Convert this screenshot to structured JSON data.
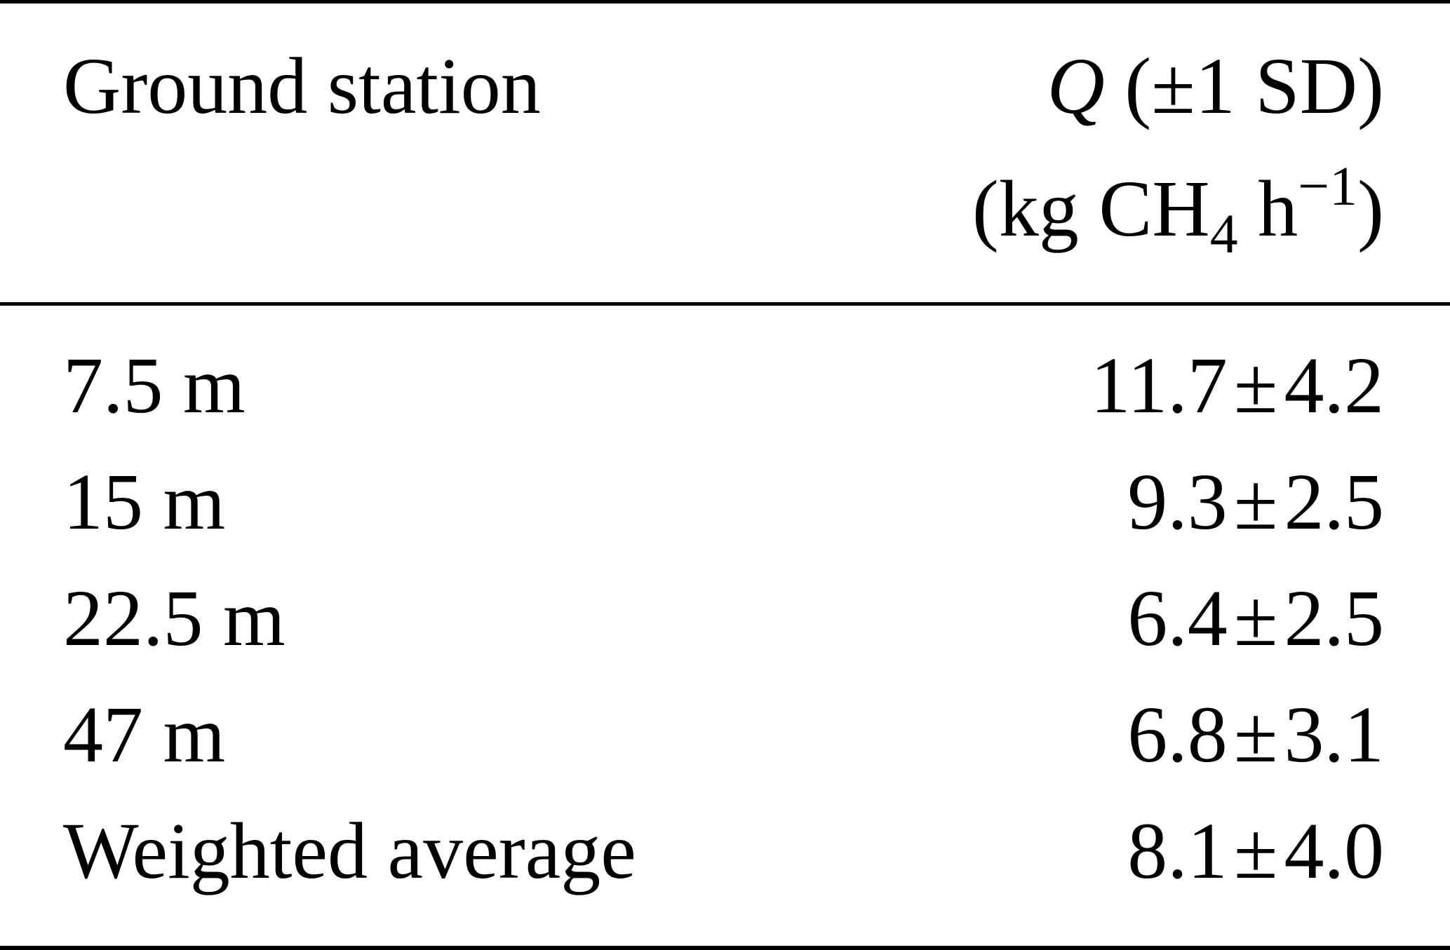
{
  "table": {
    "header": {
      "station_label": "Ground station",
      "q_symbol": "Q",
      "q_sd": "(±1 SD)",
      "unit_open": "(kg CH",
      "unit_sub": "4",
      "unit_h": " h",
      "unit_sup": "−1",
      "unit_close": ")"
    },
    "rows": [
      {
        "station": "7.5 m",
        "mean": "11.7",
        "pm": "±",
        "sd": "4.2"
      },
      {
        "station": "15 m",
        "mean": "9.3",
        "pm": "±",
        "sd": "2.5"
      },
      {
        "station": "22.5 m",
        "mean": "6.4",
        "pm": "±",
        "sd": "2.5"
      },
      {
        "station": "47 m",
        "mean": "6.8",
        "pm": "±",
        "sd": "3.1"
      },
      {
        "station": "Weighted average",
        "mean": "8.1",
        "pm": "±",
        "sd": "4.0"
      }
    ]
  }
}
